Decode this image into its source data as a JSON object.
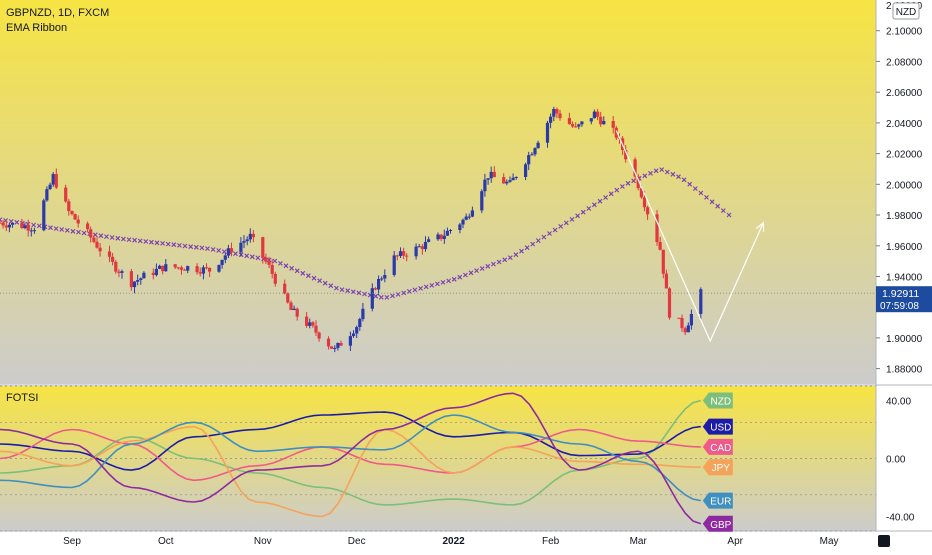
{
  "header": {
    "symbol_line": "GBPNZD, 1D, FXCM",
    "indicator_name": "EMA Ribbon",
    "currency_badge": "NZD"
  },
  "oscillator": {
    "name": "FOTSI",
    "currency_labels": [
      {
        "label": "NZD",
        "color": "#7dbf7a",
        "y": 40
      },
      {
        "label": "USD",
        "color": "#1c1ca8",
        "y": 22
      },
      {
        "label": "CAD",
        "color": "#ef5a8a",
        "y": 8
      },
      {
        "label": "JPY",
        "color": "#f5a25a",
        "y": -6
      },
      {
        "label": "EUR",
        "color": "#3f8fbf",
        "y": -29
      },
      {
        "label": "GBP",
        "color": "#8e2aa0",
        "y": -45
      }
    ]
  },
  "price_axis": {
    "ticks": [
      "2.10000",
      "2.08000",
      "2.06000",
      "2.04000",
      "2.02000",
      "2.00000",
      "1.98000",
      "1.96000",
      "1.94000",
      "1.92000",
      "1.90000",
      "1.88000"
    ],
    "top_partial": "2.12000",
    "current_price": "1.92911",
    "countdown": "07:59:08"
  },
  "osc_axis": {
    "ticks": [
      "40.00",
      "0.00",
      "-40.00"
    ]
  },
  "time_axis": {
    "labels": [
      "Sep",
      "Oct",
      "Nov",
      "Dec",
      "2022",
      "Feb",
      "Mar",
      "Apr",
      "May"
    ]
  },
  "colors": {
    "up_candle": "#2a3aa8",
    "down_candle": "#e0383e",
    "ema": "#7a3fb0",
    "projection": "#ffffff",
    "bg_top": "#f7e443",
    "bg_bottom": "#cccccc",
    "price_label_bg": "#1d4ba0"
  },
  "chart_data": [
    {
      "type": "candlestick",
      "title": "GBPNZD, 1D, FXCM",
      "xlabel": "",
      "ylabel": "",
      "ylim": [
        1.87,
        2.12
      ],
      "x_range": [
        "2021-08-09",
        "2022-05-16"
      ],
      "price_series": [
        [
          "2021-08-09",
          1.975
        ],
        [
          "2021-08-20",
          1.972
        ],
        [
          "2021-08-26",
          2.005
        ],
        [
          "2021-08-31",
          1.982
        ],
        [
          "2021-09-06",
          1.968
        ],
        [
          "2021-09-13",
          1.95
        ],
        [
          "2021-09-20",
          1.936
        ],
        [
          "2021-09-30",
          1.946
        ],
        [
          "2021-10-08",
          1.946
        ],
        [
          "2021-10-15",
          1.944
        ],
        [
          "2021-10-22",
          1.958
        ],
        [
          "2021-10-28",
          1.966
        ],
        [
          "2021-11-03",
          1.946
        ],
        [
          "2021-11-10",
          1.918
        ],
        [
          "2021-11-17",
          1.906
        ],
        [
          "2021-11-24",
          1.892
        ],
        [
          "2021-12-01",
          1.908
        ],
        [
          "2021-12-07",
          1.934
        ],
        [
          "2021-12-13",
          1.952
        ],
        [
          "2021-12-20",
          1.958
        ],
        [
          "2021-12-28",
          1.966
        ],
        [
          "2022-01-05",
          1.978
        ],
        [
          "2022-01-12",
          2.006
        ],
        [
          "2022-01-19",
          2.0
        ],
        [
          "2022-01-26",
          2.022
        ],
        [
          "2022-02-02",
          2.048
        ],
        [
          "2022-02-09",
          2.036
        ],
        [
          "2022-02-15",
          2.046
        ],
        [
          "2022-02-22",
          2.032
        ],
        [
          "2022-03-01",
          2.0
        ],
        [
          "2022-03-08",
          1.958
        ],
        [
          "2022-03-11",
          1.916
        ],
        [
          "2022-03-16",
          1.906
        ],
        [
          "2022-03-21",
          1.929
        ]
      ],
      "ema_ribbon": [
        [
          "2021-08-09",
          1.977
        ],
        [
          "2021-09-15",
          1.965
        ],
        [
          "2021-10-15",
          1.958
        ],
        [
          "2021-11-05",
          1.95
        ],
        [
          "2021-11-25",
          1.932
        ],
        [
          "2021-12-10",
          1.926
        ],
        [
          "2022-01-01",
          1.938
        ],
        [
          "2022-01-20",
          1.953
        ],
        [
          "2022-02-10",
          1.98
        ],
        [
          "2022-02-25",
          2.0
        ],
        [
          "2022-03-08",
          2.01
        ],
        [
          "2022-03-15",
          2.004
        ],
        [
          "2022-03-30",
          1.98
        ]
      ],
      "projection": [
        [
          "2022-02-22",
          2.035
        ],
        [
          "2022-03-24",
          1.898
        ],
        [
          "2022-04-10",
          1.975
        ]
      ],
      "current_price": 1.92911
    },
    {
      "type": "line",
      "title": "FOTSI",
      "ylim": [
        -50,
        50
      ],
      "grid": true,
      "x": [
        "2021-08-09",
        "2021-09-01",
        "2021-09-20",
        "2021-10-10",
        "2021-10-30",
        "2021-11-20",
        "2021-12-10",
        "2022-01-01",
        "2022-01-20",
        "2022-02-10",
        "2022-03-01",
        "2022-03-21"
      ],
      "series": [
        {
          "name": "NZD",
          "color": "#7dbf7a",
          "values": [
            -10,
            -5,
            15,
            0,
            -10,
            -20,
            -32,
            -28,
            -32,
            -8,
            0,
            40
          ]
        },
        {
          "name": "USD",
          "color": "#1c1ca8",
          "values": [
            10,
            5,
            -8,
            15,
            20,
            30,
            32,
            15,
            18,
            2,
            3,
            22
          ]
        },
        {
          "name": "CAD",
          "color": "#ef5a8a",
          "values": [
            0,
            20,
            10,
            -15,
            -5,
            8,
            -4,
            -10,
            8,
            20,
            12,
            8
          ]
        },
        {
          "name": "JPY",
          "color": "#f5a25a",
          "values": [
            5,
            -5,
            12,
            22,
            -30,
            -40,
            20,
            -10,
            8,
            -2,
            -4,
            -6
          ]
        },
        {
          "name": "EUR",
          "color": "#3f8fbf",
          "values": [
            -15,
            -20,
            10,
            25,
            5,
            8,
            6,
            30,
            18,
            10,
            -2,
            -29
          ]
        },
        {
          "name": "GBP",
          "color": "#8e2aa0",
          "values": [
            20,
            10,
            -20,
            -30,
            -8,
            -5,
            20,
            35,
            45,
            -8,
            5,
            -45
          ]
        }
      ]
    }
  ]
}
